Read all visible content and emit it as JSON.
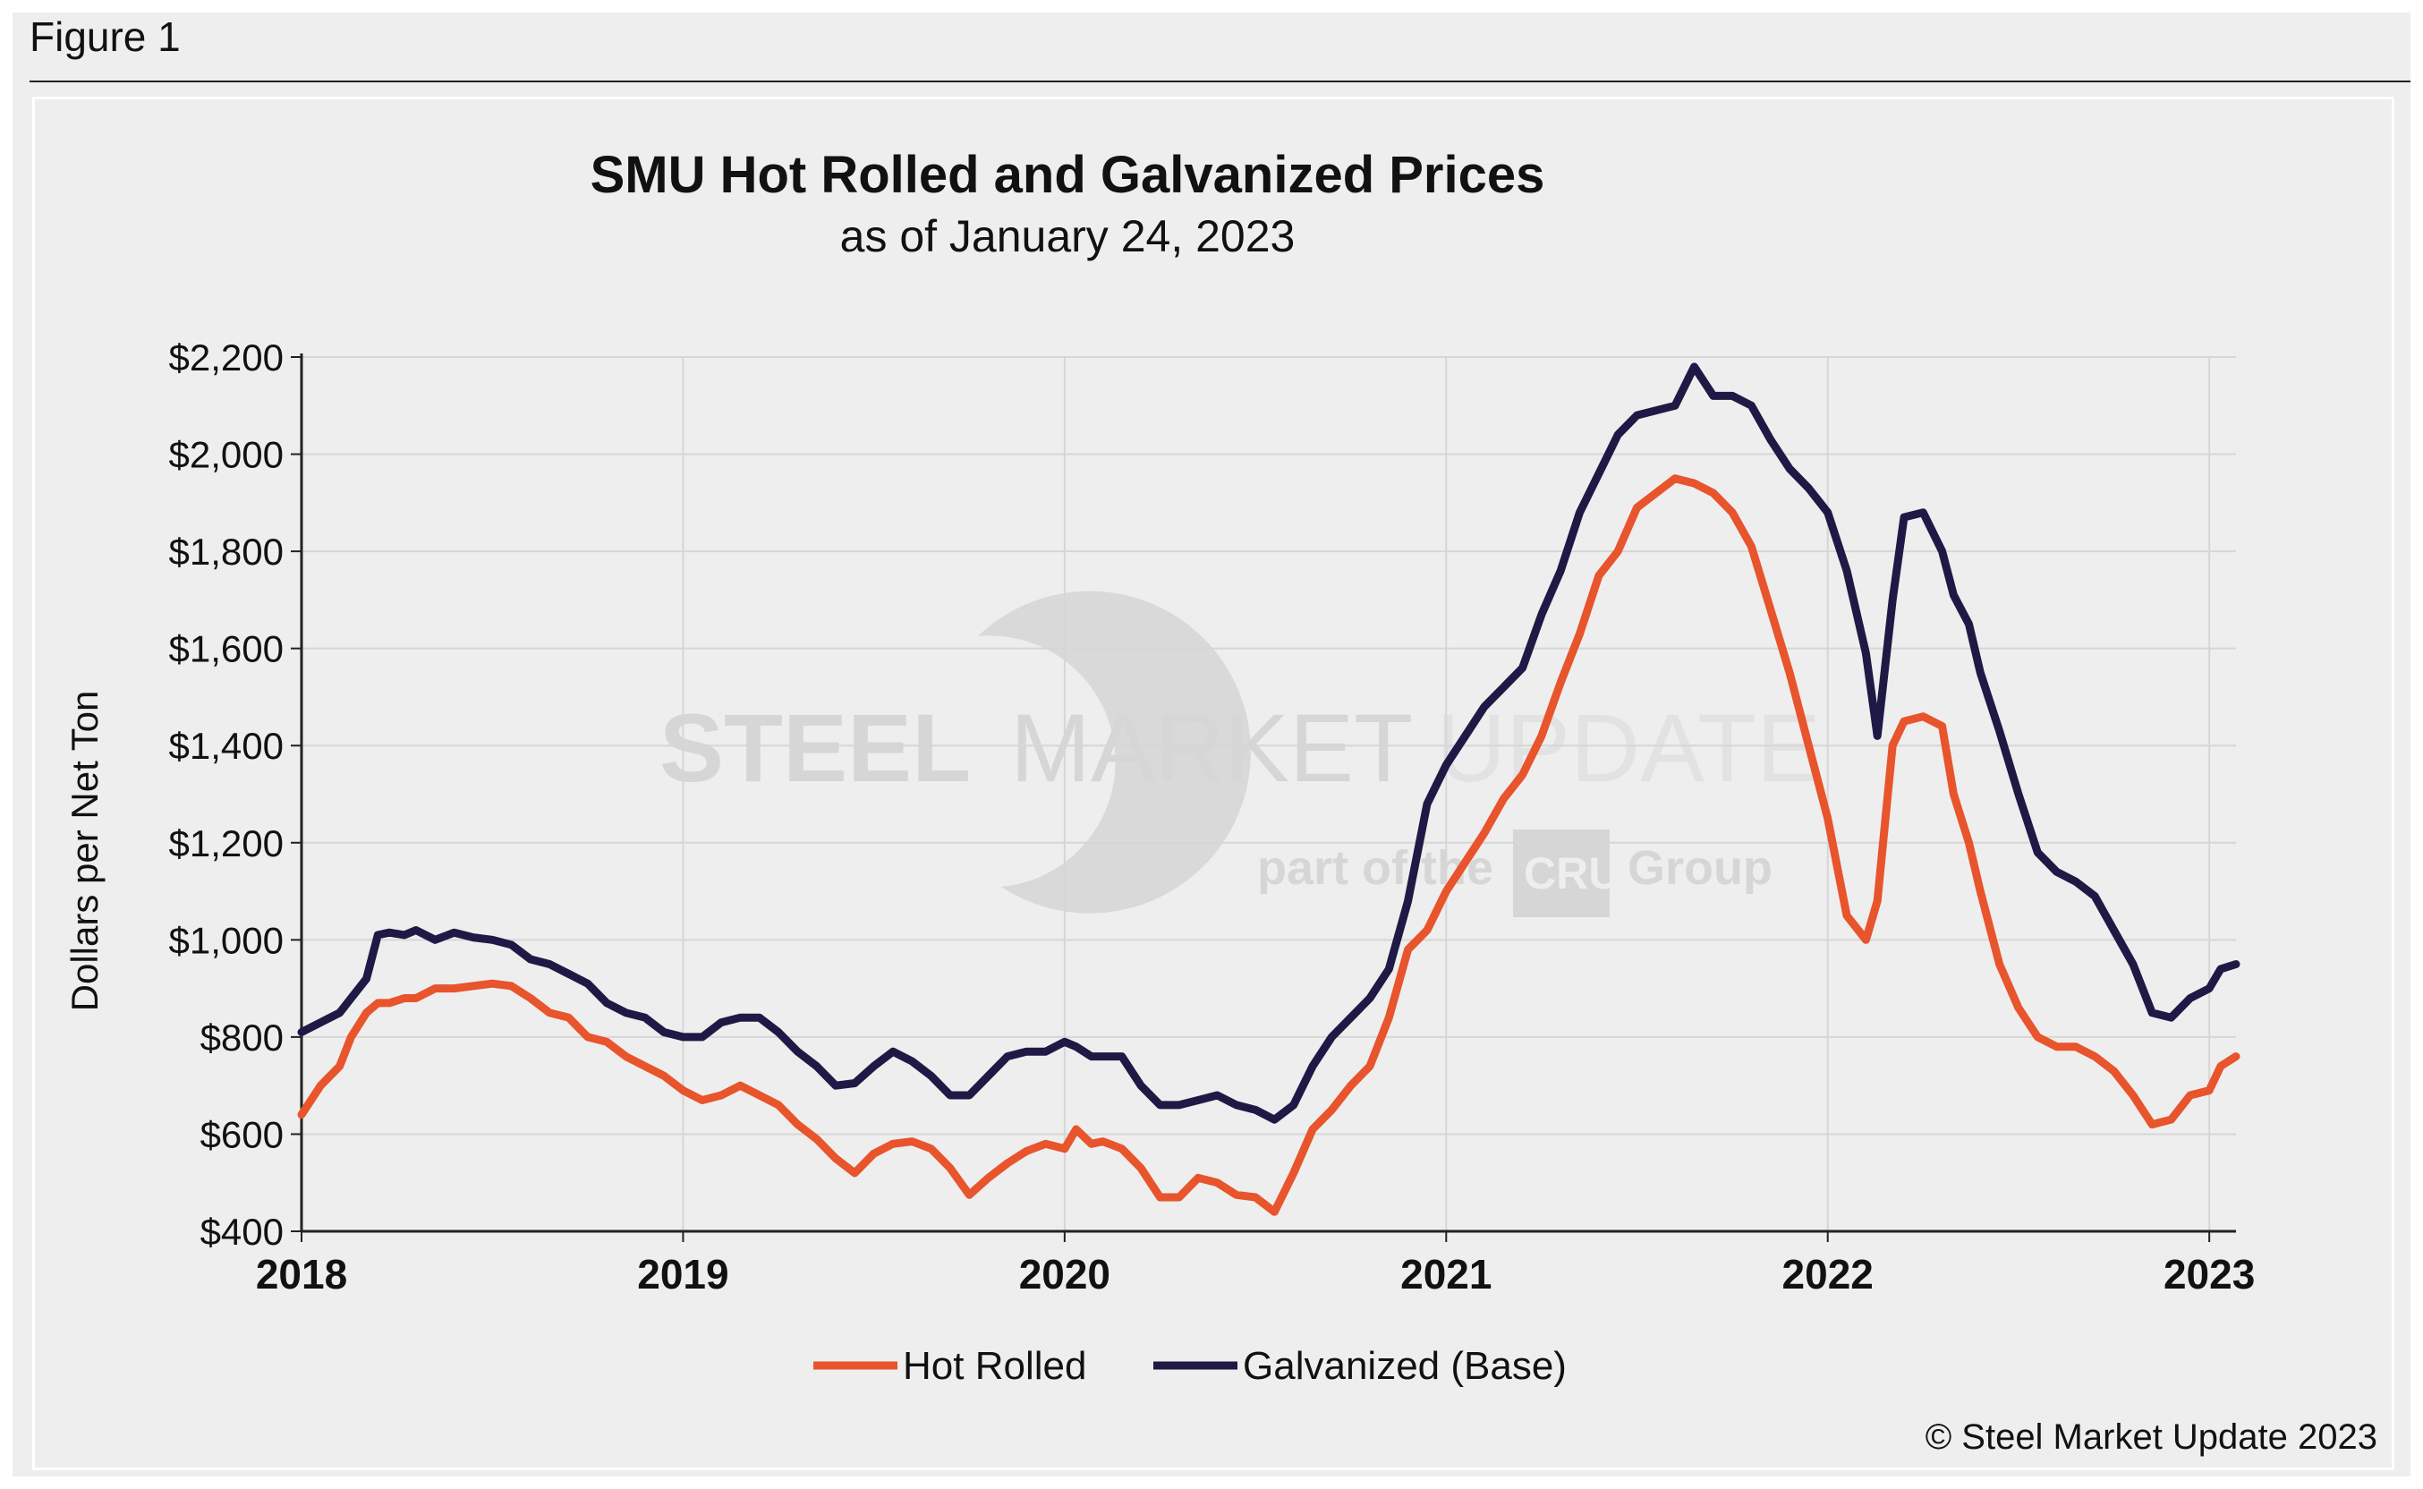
{
  "figure_label": "Figure 1",
  "copyright": "© Steel Market Update 2023",
  "watermark": {
    "brand_bold": "STEEL",
    "brand_mid": "MARKET",
    "brand_light": "UPDATE",
    "tagline_pre": "part of the",
    "tagline_logo": "CRU",
    "tagline_post": "Group"
  },
  "colors": {
    "hot_rolled": "#e8542c",
    "galvanized": "#1e1a45",
    "grid": "#d6d6d6",
    "axis": "#222222"
  },
  "chart_data": {
    "type": "line",
    "title": "SMU Hot Rolled and Galvanized Prices",
    "subtitle": "as of January 24, 2023",
    "ylabel": "Dollars per Net Ton",
    "xlabel": "",
    "x_ticks": [
      "2018",
      "2019",
      "2020",
      "2021",
      "2022",
      "2023"
    ],
    "y_ticks": [
      "$400",
      "$600",
      "$800",
      "$1,000",
      "$1,200",
      "$1,400",
      "$1,600",
      "$1,800",
      "$2,000",
      "$2,200"
    ],
    "xlim": [
      2018.0,
      2023.07
    ],
    "ylim": [
      400,
      2200
    ],
    "grid": true,
    "legend_position": "bottom-center",
    "series": [
      {
        "name": "Hot Rolled",
        "x": [
          2018.0,
          2018.05,
          2018.1,
          2018.13,
          2018.17,
          2018.2,
          2018.23,
          2018.27,
          2018.3,
          2018.35,
          2018.4,
          2018.45,
          2018.5,
          2018.55,
          2018.6,
          2018.65,
          2018.7,
          2018.75,
          2018.8,
          2018.85,
          2018.9,
          2018.95,
          2019.0,
          2019.05,
          2019.1,
          2019.15,
          2019.2,
          2019.25,
          2019.3,
          2019.35,
          2019.4,
          2019.45,
          2019.5,
          2019.55,
          2019.6,
          2019.65,
          2019.7,
          2019.75,
          2019.8,
          2019.85,
          2019.9,
          2019.95,
          2020.0,
          2020.03,
          2020.07,
          2020.1,
          2020.15,
          2020.2,
          2020.25,
          2020.3,
          2020.35,
          2020.4,
          2020.45,
          2020.5,
          2020.55,
          2020.6,
          2020.65,
          2020.7,
          2020.75,
          2020.8,
          2020.85,
          2020.9,
          2020.95,
          2021.0,
          2021.05,
          2021.1,
          2021.15,
          2021.2,
          2021.25,
          2021.3,
          2021.35,
          2021.4,
          2021.45,
          2021.5,
          2021.55,
          2021.6,
          2021.65,
          2021.7,
          2021.75,
          2021.8,
          2021.85,
          2021.9,
          2021.95,
          2022.0,
          2022.05,
          2022.1,
          2022.13,
          2022.17,
          2022.2,
          2022.25,
          2022.3,
          2022.33,
          2022.37,
          2022.4,
          2022.45,
          2022.5,
          2022.55,
          2022.6,
          2022.65,
          2022.7,
          2022.75,
          2022.8,
          2022.85,
          2022.9,
          2022.95,
          2023.0,
          2023.03,
          2023.07
        ],
        "values": [
          640,
          700,
          740,
          800,
          850,
          870,
          870,
          880,
          880,
          900,
          900,
          905,
          910,
          905,
          880,
          850,
          840,
          800,
          790,
          760,
          740,
          720,
          690,
          670,
          680,
          700,
          680,
          660,
          620,
          590,
          550,
          520,
          560,
          580,
          585,
          570,
          530,
          475,
          510,
          540,
          565,
          580,
          570,
          610,
          580,
          585,
          570,
          530,
          470,
          470,
          510,
          500,
          475,
          470,
          440,
          520,
          610,
          650,
          700,
          740,
          840,
          980,
          1020,
          1100,
          1160,
          1220,
          1290,
          1340,
          1420,
          1530,
          1630,
          1750,
          1800,
          1890,
          1920,
          1950,
          1940,
          1920,
          1880,
          1810,
          1680,
          1550,
          1400,
          1250,
          1050,
          1000,
          1080,
          1400,
          1450,
          1460,
          1440,
          1300,
          1200,
          1100,
          950,
          860,
          800,
          780,
          780,
          760,
          730,
          680,
          620,
          630,
          680,
          690,
          740,
          760
        ]
      },
      {
        "name": "Galvanized (Base)",
        "x": [
          2018.0,
          2018.05,
          2018.1,
          2018.13,
          2018.17,
          2018.2,
          2018.23,
          2018.27,
          2018.3,
          2018.35,
          2018.4,
          2018.45,
          2018.5,
          2018.55,
          2018.6,
          2018.65,
          2018.7,
          2018.75,
          2018.8,
          2018.85,
          2018.9,
          2018.95,
          2019.0,
          2019.05,
          2019.1,
          2019.15,
          2019.2,
          2019.25,
          2019.3,
          2019.35,
          2019.4,
          2019.45,
          2019.5,
          2019.55,
          2019.6,
          2019.65,
          2019.7,
          2019.75,
          2019.8,
          2019.85,
          2019.9,
          2019.95,
          2020.0,
          2020.03,
          2020.07,
          2020.1,
          2020.15,
          2020.2,
          2020.25,
          2020.3,
          2020.35,
          2020.4,
          2020.45,
          2020.5,
          2020.55,
          2020.6,
          2020.65,
          2020.7,
          2020.75,
          2020.8,
          2020.85,
          2020.9,
          2020.95,
          2021.0,
          2021.05,
          2021.1,
          2021.15,
          2021.2,
          2021.25,
          2021.3,
          2021.35,
          2021.4,
          2021.45,
          2021.5,
          2021.55,
          2021.6,
          2021.65,
          2021.7,
          2021.75,
          2021.8,
          2021.85,
          2021.9,
          2021.95,
          2022.0,
          2022.05,
          2022.1,
          2022.13,
          2022.17,
          2022.2,
          2022.25,
          2022.3,
          2022.33,
          2022.37,
          2022.4,
          2022.45,
          2022.5,
          2022.55,
          2022.6,
          2022.65,
          2022.7,
          2022.75,
          2022.8,
          2022.85,
          2022.9,
          2022.95,
          2023.0,
          2023.03,
          2023.07
        ],
        "values": [
          810,
          830,
          850,
          880,
          920,
          1010,
          1015,
          1010,
          1020,
          1000,
          1015,
          1005,
          1000,
          990,
          960,
          950,
          930,
          910,
          870,
          850,
          840,
          810,
          800,
          800,
          830,
          840,
          840,
          810,
          770,
          740,
          700,
          705,
          740,
          770,
          750,
          720,
          680,
          680,
          720,
          760,
          770,
          770,
          790,
          780,
          760,
          760,
          760,
          700,
          660,
          660,
          670,
          680,
          660,
          650,
          630,
          660,
          740,
          800,
          840,
          880,
          940,
          1080,
          1280,
          1360,
          1420,
          1480,
          1520,
          1560,
          1670,
          1760,
          1880,
          1960,
          2040,
          2080,
          2090,
          2100,
          2180,
          2120,
          2120,
          2100,
          2030,
          1970,
          1930,
          1880,
          1760,
          1590,
          1420,
          1700,
          1870,
          1880,
          1800,
          1710,
          1650,
          1550,
          1430,
          1300,
          1180,
          1140,
          1120,
          1090,
          1020,
          950,
          850,
          840,
          880,
          900,
          940,
          950
        ]
      }
    ]
  }
}
